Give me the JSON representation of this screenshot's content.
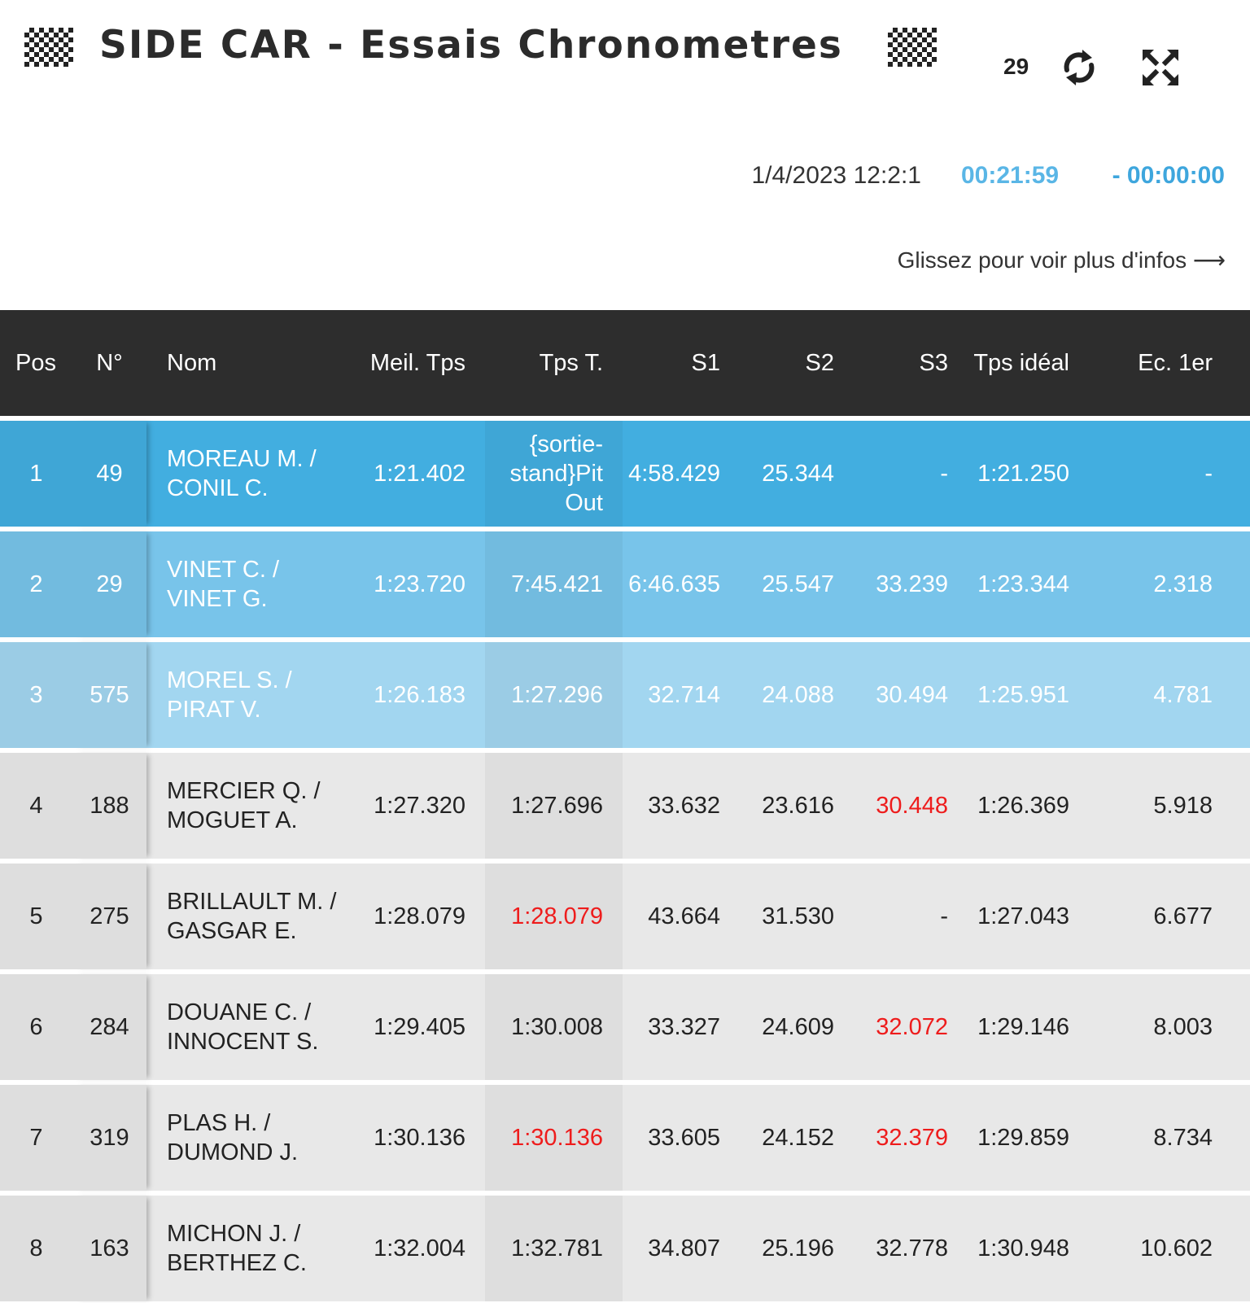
{
  "header": {
    "title": "SIDE CAR - Essais Chronometres",
    "counter": "29",
    "datetime": "1/4/2023 12:2:1",
    "elapsed": "00:21:59",
    "remaining": "- 00:00:00",
    "swipe_hint": "Glissez pour voir plus d'infos ⟶"
  },
  "colors": {
    "row1": "#42aee0",
    "row2": "#78c4ea",
    "row3": "#a2d6f0",
    "row_default": "#e8e8e8",
    "header_bg": "#2d2d2d",
    "alert": "#ee1c1c",
    "elapsed": "#5ab6e6"
  },
  "columns": {
    "pos": "Pos",
    "num": "N°",
    "nom": "Nom",
    "best": "Meil. Tps",
    "tps": "Tps T.",
    "s1": "S1",
    "s2": "S2",
    "s3": "S3",
    "ideal": "Tps idéal",
    "gap": "Ec. 1er"
  },
  "rows": [
    {
      "pos": "1",
      "num": "49",
      "nom": "MOREAU M. / CONIL C.",
      "best": "1:21.402",
      "tps": "{sortie-stand}Pit Out",
      "s1": "4:58.429",
      "s2": "25.344",
      "s3": "-",
      "ideal": "1:21.250",
      "gap": "-"
    },
    {
      "pos": "2",
      "num": "29",
      "nom": "VINET C. / VINET G.",
      "best": "1:23.720",
      "tps": "7:45.421",
      "s1": "6:46.635",
      "s2": "25.547",
      "s3": "33.239",
      "ideal": "1:23.344",
      "gap": "2.318"
    },
    {
      "pos": "3",
      "num": "575",
      "nom": "MOREL S. / PIRAT V.",
      "best": "1:26.183",
      "tps": "1:27.296",
      "s1": "32.714",
      "s2": "24.088",
      "s3": "30.494",
      "ideal": "1:25.951",
      "gap": "4.781"
    },
    {
      "pos": "4",
      "num": "188",
      "nom": "MERCIER Q. / MOGUET A.",
      "best": "1:27.320",
      "tps": "1:27.696",
      "s1": "33.632",
      "s2": "23.616",
      "s3": "30.448",
      "ideal": "1:26.369",
      "gap": "5.918"
    },
    {
      "pos": "5",
      "num": "275",
      "nom": "BRILLAULT M. / GASGAR E.",
      "best": "1:28.079",
      "tps": "1:28.079",
      "s1": "43.664",
      "s2": "31.530",
      "s3": "-",
      "ideal": "1:27.043",
      "gap": "6.677"
    },
    {
      "pos": "6",
      "num": "284",
      "nom": "DOUANE C. / INNOCENT S.",
      "best": "1:29.405",
      "tps": "1:30.008",
      "s1": "33.327",
      "s2": "24.609",
      "s3": "32.072",
      "ideal": "1:29.146",
      "gap": "8.003"
    },
    {
      "pos": "7",
      "num": "319",
      "nom": "PLAS H. / DUMOND J.",
      "best": "1:30.136",
      "tps": "1:30.136",
      "s1": "33.605",
      "s2": "24.152",
      "s3": "32.379",
      "ideal": "1:29.859",
      "gap": "8.734"
    },
    {
      "pos": "8",
      "num": "163",
      "nom": "MICHON J. / BERTHEZ C.",
      "best": "1:32.004",
      "tps": "1:32.781",
      "s1": "34.807",
      "s2": "25.196",
      "s3": "32.778",
      "ideal": "1:30.948",
      "gap": "10.602"
    }
  ]
}
